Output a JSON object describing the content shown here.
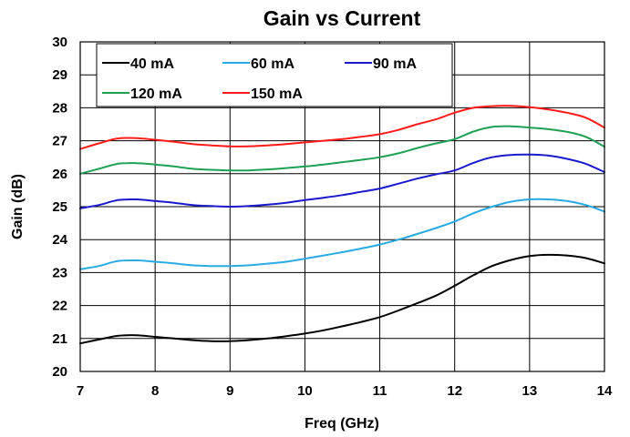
{
  "chart_data": {
    "type": "line",
    "title": "Gain vs Current",
    "xlabel": "Freq (GHz)",
    "ylabel": "Gain (dB)",
    "xlim": [
      7,
      14
    ],
    "ylim": [
      20,
      30
    ],
    "xticks": [
      7,
      8,
      9,
      10,
      11,
      12,
      13,
      14
    ],
    "yticks": [
      20,
      21,
      22,
      23,
      24,
      25,
      26,
      27,
      28,
      29,
      30
    ],
    "grid": true,
    "legend_position": "top-left",
    "series": [
      {
        "name": "40 mA",
        "color": "#000000",
        "x": [
          7,
          7.25,
          7.5,
          7.75,
          8,
          8.25,
          8.5,
          8.75,
          9,
          9.25,
          9.5,
          9.75,
          10,
          10.25,
          10.5,
          10.75,
          11,
          11.25,
          11.5,
          11.75,
          12,
          12.25,
          12.5,
          12.75,
          13,
          13.25,
          13.5,
          13.75,
          14
        ],
        "y": [
          20.85,
          20.97,
          21.08,
          21.1,
          21.05,
          21.0,
          20.95,
          20.92,
          20.92,
          20.95,
          21.0,
          21.07,
          21.15,
          21.25,
          21.37,
          21.5,
          21.65,
          21.85,
          22.07,
          22.3,
          22.6,
          22.92,
          23.2,
          23.38,
          23.5,
          23.54,
          23.52,
          23.44,
          23.28
        ]
      },
      {
        "name": "60 mA",
        "color": "#29abe2",
        "x": [
          7,
          7.25,
          7.5,
          7.75,
          8,
          8.25,
          8.5,
          8.75,
          9,
          9.25,
          9.5,
          9.75,
          10,
          10.25,
          10.5,
          10.75,
          11,
          11.25,
          11.5,
          11.75,
          12,
          12.25,
          12.5,
          12.75,
          13,
          13.25,
          13.5,
          13.75,
          14
        ],
        "y": [
          23.1,
          23.2,
          23.35,
          23.37,
          23.33,
          23.28,
          23.22,
          23.2,
          23.2,
          23.22,
          23.27,
          23.33,
          23.42,
          23.52,
          23.62,
          23.73,
          23.85,
          24.0,
          24.17,
          24.35,
          24.55,
          24.8,
          25.0,
          25.15,
          25.22,
          25.22,
          25.17,
          25.05,
          24.85
        ]
      },
      {
        "name": "90 mA",
        "color": "#1a1acc",
        "x": [
          7,
          7.25,
          7.5,
          7.75,
          8,
          8.25,
          8.5,
          8.75,
          9,
          9.25,
          9.5,
          9.75,
          10,
          10.25,
          10.5,
          10.75,
          11,
          11.25,
          11.5,
          11.75,
          12,
          12.25,
          12.5,
          12.75,
          13,
          13.25,
          13.5,
          13.75,
          14
        ],
        "y": [
          24.95,
          25.05,
          25.2,
          25.22,
          25.17,
          25.12,
          25.05,
          25.02,
          25.0,
          25.02,
          25.06,
          25.12,
          25.2,
          25.27,
          25.35,
          25.45,
          25.55,
          25.7,
          25.85,
          25.98,
          26.1,
          26.33,
          26.5,
          26.57,
          26.58,
          26.55,
          26.45,
          26.3,
          26.05
        ]
      },
      {
        "name": "120 mA",
        "color": "#1fa055",
        "x": [
          7,
          7.25,
          7.5,
          7.75,
          8,
          8.25,
          8.5,
          8.75,
          9,
          9.25,
          9.5,
          9.75,
          10,
          10.25,
          10.5,
          10.75,
          11,
          11.25,
          11.5,
          11.75,
          12,
          12.25,
          12.5,
          12.75,
          13,
          13.25,
          13.5,
          13.75,
          14
        ],
        "y": [
          26.0,
          26.15,
          26.3,
          26.32,
          26.28,
          26.22,
          26.15,
          26.12,
          26.1,
          26.1,
          26.13,
          26.17,
          26.22,
          26.28,
          26.35,
          26.42,
          26.5,
          26.62,
          26.78,
          26.92,
          27.05,
          27.28,
          27.42,
          27.44,
          27.4,
          27.35,
          27.27,
          27.12,
          26.82
        ]
      },
      {
        "name": "150 mA",
        "color": "#ff1a1a",
        "x": [
          7,
          7.25,
          7.5,
          7.75,
          8,
          8.25,
          8.5,
          8.75,
          9,
          9.25,
          9.5,
          9.75,
          10,
          10.25,
          10.5,
          10.75,
          11,
          11.25,
          11.5,
          11.75,
          12,
          12.25,
          12.5,
          12.75,
          13,
          13.25,
          13.5,
          13.75,
          14
        ],
        "y": [
          26.75,
          26.92,
          27.07,
          27.08,
          27.03,
          26.97,
          26.9,
          26.86,
          26.83,
          26.83,
          26.86,
          26.9,
          26.95,
          27.0,
          27.05,
          27.12,
          27.2,
          27.33,
          27.5,
          27.65,
          27.85,
          28.0,
          28.05,
          28.06,
          28.02,
          27.95,
          27.85,
          27.7,
          27.4
        ]
      }
    ]
  }
}
